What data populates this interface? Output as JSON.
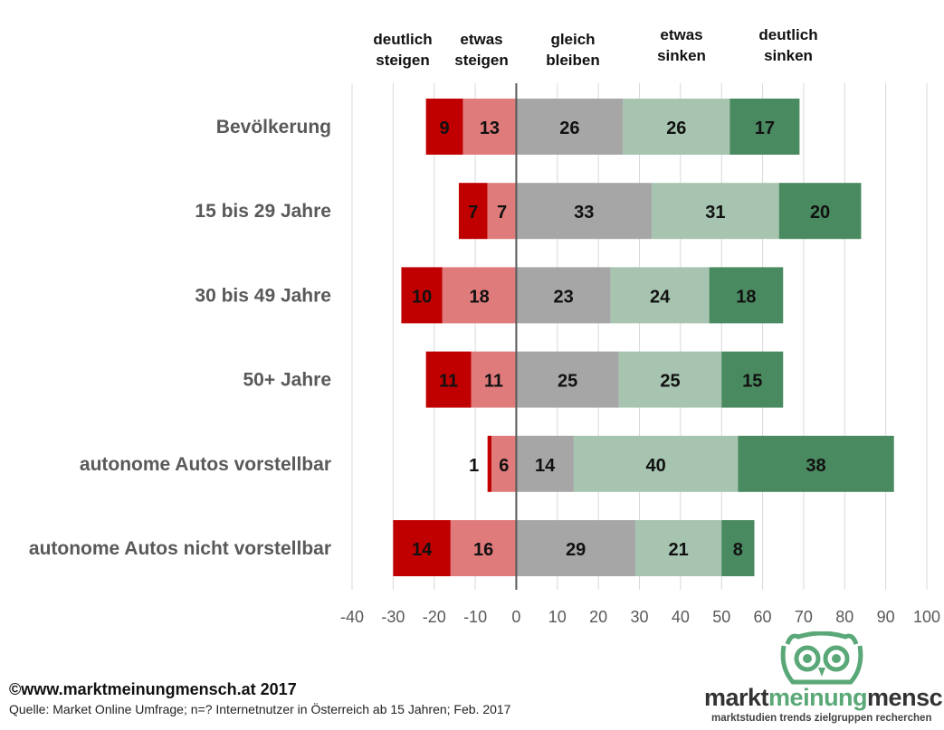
{
  "header": {
    "columns": [
      {
        "line1": "deutlich",
        "line2": "steigen"
      },
      {
        "line1": "etwas",
        "line2": "steigen"
      },
      {
        "line1": "gleich",
        "line2": "bleiben"
      },
      {
        "line1": "etwas",
        "line2": "sinken"
      },
      {
        "line1": "deutlich",
        "line2": "sinken"
      }
    ]
  },
  "chart_data": {
    "type": "bar",
    "orientation": "horizontal",
    "stacked": "diverging",
    "categories": [
      "Bevölkerung",
      "15 bis 29 Jahre",
      "30 bis 49 Jahre",
      "50+ Jahre",
      "autonome Autos vorstellbar",
      "autonome Autos nicht vorstellbar"
    ],
    "series": [
      {
        "name": "deutlich steigen",
        "direction": "negative",
        "color": "#c00000",
        "values": [
          9,
          7,
          10,
          11,
          1,
          14
        ]
      },
      {
        "name": "etwas steigen",
        "direction": "negative",
        "color": "#e07b7b",
        "values": [
          13,
          7,
          18,
          11,
          6,
          16
        ]
      },
      {
        "name": "gleich bleiben",
        "direction": "positive",
        "color": "#a6a6a6",
        "values": [
          26,
          33,
          23,
          25,
          14,
          29
        ]
      },
      {
        "name": "etwas sinken",
        "direction": "positive",
        "color": "#a6c4b0",
        "values": [
          26,
          31,
          24,
          25,
          40,
          21
        ]
      },
      {
        "name": "deutlich sinken",
        "direction": "positive",
        "color": "#4a8a60",
        "values": [
          17,
          20,
          18,
          15,
          38,
          8
        ]
      }
    ],
    "xlim": [
      -40,
      100
    ],
    "xticks": [
      -40,
      -30,
      -20,
      -10,
      0,
      10,
      20,
      30,
      40,
      50,
      60,
      70,
      80,
      90,
      100
    ],
    "grid": true,
    "legend": "top"
  },
  "footer": {
    "copyright": "©www.marktmeinungmensch.at 2017",
    "source": "Quelle: Market Online Umfrage; n=? Internetnutzer in Österreich ab 15 Jahren; Feb. 2017"
  },
  "logo": {
    "part1": "markt",
    "part2": "meinung",
    "part3": "mensch",
    "tagline": "marktstudien trends zielgruppen recherchen"
  }
}
